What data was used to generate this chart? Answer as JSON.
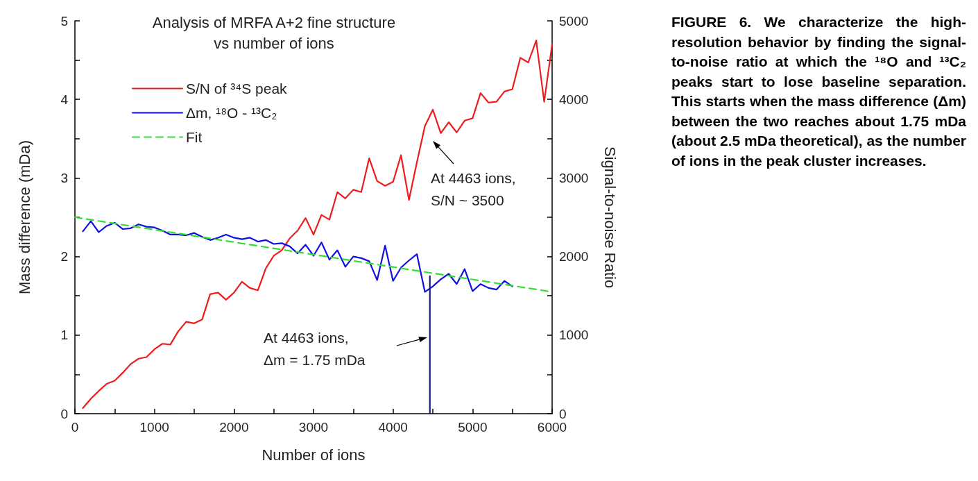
{
  "chart_data": {
    "type": "line",
    "title": "Analysis of MRFA A+2 fine structure\nvs number of ions",
    "xlabel": "Number of ions",
    "ylabel": "Mass difference (mDa)",
    "y2label": "Signal-to-noise Ratio",
    "series": [
      {
        "name": "S/N of ³⁴S peak",
        "color": "#ee1c1c",
        "axis": "y2",
        "line_style": "solid",
        "x": [
          100,
          200,
          300,
          400,
          500,
          600,
          700,
          800,
          900,
          1000,
          1100,
          1200,
          1300,
          1400,
          1500,
          1600,
          1700,
          1800,
          1900,
          2000,
          2100,
          2200,
          2300,
          2400,
          2500,
          2600,
          2700,
          2800,
          2900,
          3000,
          3100,
          3200,
          3300,
          3400,
          3500,
          3600,
          3700,
          3800,
          3900,
          4000,
          4100,
          4200,
          4300,
          4400,
          4500,
          4600,
          4700,
          4800,
          4900,
          5000,
          5100,
          5200,
          5300,
          5400,
          5500,
          5600,
          5700,
          5800,
          5900,
          6000
        ],
        "values": [
          70,
          190,
          290,
          380,
          420,
          520,
          630,
          700,
          720,
          820,
          890,
          880,
          1050,
          1170,
          1150,
          1200,
          1520,
          1540,
          1450,
          1540,
          1680,
          1600,
          1570,
          1850,
          2010,
          2080,
          2230,
          2330,
          2490,
          2280,
          2530,
          2470,
          2820,
          2740,
          2850,
          2820,
          3250,
          2960,
          2900,
          2950,
          3290,
          2720,
          3200,
          3660,
          3870,
          3570,
          3710,
          3580,
          3730,
          3760,
          4080,
          3960,
          3970,
          4100,
          4130,
          4530,
          4470,
          4750,
          3970,
          4700
        ]
      },
      {
        "name": "Δm, ¹⁸O - ¹³C₂",
        "color": "#1010e0",
        "line_style": "solid",
        "x": [
          100,
          200,
          300,
          400,
          500,
          600,
          700,
          800,
          900,
          1000,
          1100,
          1200,
          1300,
          1400,
          1500,
          1600,
          1700,
          1800,
          1900,
          2000,
          2100,
          2200,
          2300,
          2400,
          2500,
          2600,
          2700,
          2800,
          2900,
          3000,
          3100,
          3200,
          3300,
          3400,
          3500,
          3600,
          3700,
          3800,
          3900,
          4000,
          4100,
          4200,
          4300,
          4400,
          4500,
          4600,
          4700,
          4800,
          4900,
          5000,
          5100,
          5200,
          5300,
          5400,
          5500
        ],
        "values": [
          2.32,
          2.45,
          2.31,
          2.39,
          2.43,
          2.35,
          2.36,
          2.41,
          2.38,
          2.37,
          2.33,
          2.28,
          2.28,
          2.27,
          2.3,
          2.25,
          2.21,
          2.24,
          2.28,
          2.24,
          2.22,
          2.24,
          2.19,
          2.21,
          2.16,
          2.17,
          2.13,
          2.04,
          2.15,
          2.01,
          2.18,
          1.96,
          2.08,
          1.87,
          2.0,
          1.98,
          1.94,
          1.7,
          2.14,
          1.69,
          1.86,
          1.95,
          2.03,
          1.55,
          1.62,
          1.71,
          1.78,
          1.65,
          1.84,
          1.56,
          1.65,
          1.6,
          1.58,
          1.69,
          1.62
        ]
      },
      {
        "name": "Fit",
        "color": "#33dd33",
        "line_style": "dashed",
        "x": [
          0,
          6000
        ],
        "values": [
          2.5,
          1.55
        ]
      },
      {
        "color": "#1a1a80",
        "line_style": "solid",
        "x": [
          4463,
          4463
        ],
        "values": [
          0,
          1.75
        ]
      }
    ],
    "annotations": [
      "At 4463 ions,\nS/N ~ 3500",
      "At 4463 ions,\nΔm = 1.75 mDa",
      "FIGURE 6. We characterize the high-resolution behavior by finding the signal-to-noise ratio at which the ¹⁸O and ¹³C₂ peaks start to lose baseline separation. This starts when the mass difference (Δm) between the two reaches about 1.75 mDa (about 2.5 mDa theoretical), as the number of ions in the peak cluster increases."
    ],
    "xlim": [
      0,
      6000
    ],
    "xticks": [
      0,
      {
        "value": 500,
        "label": null
      },
      1000,
      {
        "value": 1500,
        "label": null
      },
      2000,
      {
        "value": 2500,
        "label": null
      },
      3000,
      {
        "value": 3500,
        "label": null
      },
      4000,
      {
        "value": 4500,
        "label": null
      },
      5000,
      {
        "value": 5500,
        "label": null
      },
      6000
    ],
    "ylim": [
      0,
      5
    ],
    "yticks": [
      0,
      {
        "value": 0.5,
        "label": null
      },
      1,
      {
        "value": 1.5,
        "label": null
      },
      2,
      {
        "value": 2.5,
        "label": null
      },
      3,
      {
        "value": 3.5,
        "label": null
      },
      4,
      {
        "value": 4.5,
        "label": null
      },
      5
    ],
    "y2lim": [
      0,
      5000
    ],
    "y2ticks": [
      0,
      {
        "value": 500,
        "label": null
      },
      1000,
      {
        "value": 1500,
        "label": null
      },
      2000,
      {
        "value": 2500,
        "label": null
      },
      3000,
      {
        "value": 3500,
        "label": null
      },
      4000,
      {
        "value": 4500,
        "label": null
      },
      5000
    ],
    "grid": false,
    "legend": "top left",
    "marker": "none"
  }
}
